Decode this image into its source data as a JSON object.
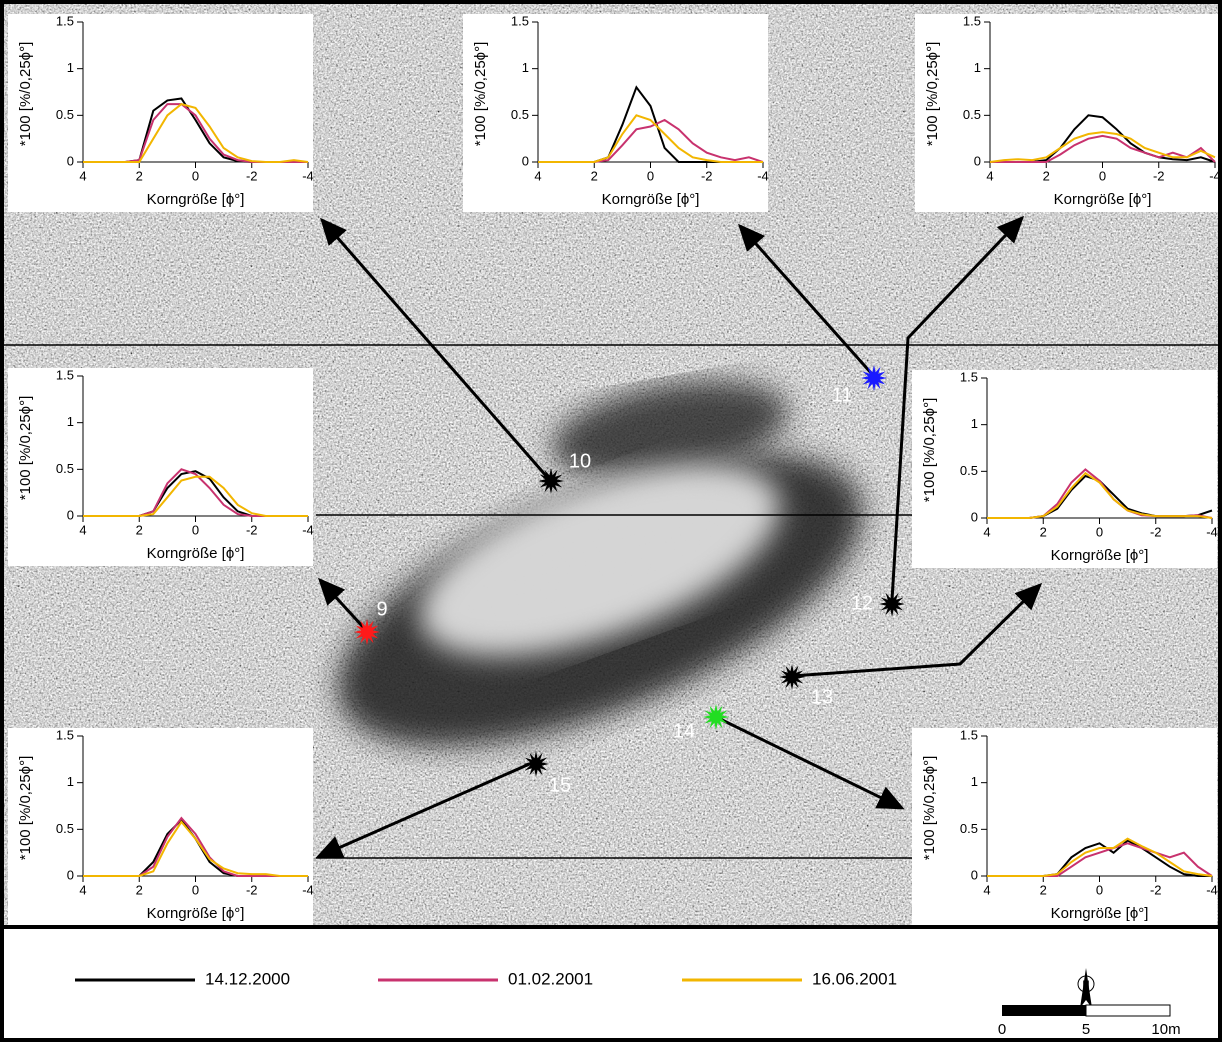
{
  "chart_data": [
    {
      "type": "line",
      "xlabel": "Korngröße [ϕ°]",
      "ylabel": "*100 [%/0,25ϕ°]",
      "x": [
        4,
        3.5,
        3,
        2.5,
        2,
        1.5,
        1,
        0.5,
        0,
        -0.5,
        -1,
        -1.5,
        -2,
        -2.5,
        -3,
        -3.5,
        -4
      ],
      "xlim": [
        4,
        -4
      ],
      "ylim": [
        0,
        1.5
      ],
      "xticks": [
        4,
        2,
        0,
        -2,
        -4
      ],
      "yticks": [
        0,
        0.5,
        1,
        1.5
      ],
      "series": [
        {
          "values": [
            0,
            0,
            0,
            0,
            0.02,
            0.55,
            0.66,
            0.68,
            0.45,
            0.2,
            0.05,
            0.01,
            0,
            0,
            0,
            0,
            0
          ]
        },
        {
          "values": [
            0,
            0,
            0,
            0,
            0.02,
            0.45,
            0.62,
            0.62,
            0.5,
            0.25,
            0.08,
            0.02,
            0,
            0,
            0,
            0,
            0
          ]
        },
        {
          "values": [
            0,
            0,
            0,
            0,
            0,
            0.25,
            0.5,
            0.62,
            0.58,
            0.38,
            0.15,
            0.05,
            0.01,
            0,
            0,
            0.02,
            0
          ]
        }
      ]
    },
    {
      "type": "line",
      "xlabel": "Korngröße [ϕ°]",
      "ylabel": "*100 [%/0,25ϕ°]",
      "x": [
        4,
        3.5,
        3,
        2.5,
        2,
        1.5,
        1,
        0.5,
        0,
        -0.5,
        -1,
        -1.5,
        -2,
        -2.5,
        -3,
        -3.5,
        -4
      ],
      "xlim": [
        4,
        -4
      ],
      "ylim": [
        0,
        1.5
      ],
      "xticks": [
        4,
        2,
        0,
        -2,
        -4
      ],
      "yticks": [
        0,
        0.5,
        1,
        1.5
      ],
      "series": [
        {
          "values": [
            0,
            0,
            0,
            0,
            0,
            0.05,
            0.4,
            0.8,
            0.6,
            0.15,
            0,
            0,
            0,
            0,
            0,
            0,
            0
          ]
        },
        {
          "values": [
            0,
            0,
            0,
            0,
            0,
            0.02,
            0.18,
            0.35,
            0.38,
            0.45,
            0.35,
            0.2,
            0.1,
            0.05,
            0.02,
            0.05,
            0
          ]
        },
        {
          "values": [
            0,
            0,
            0,
            0,
            0,
            0.05,
            0.3,
            0.5,
            0.45,
            0.3,
            0.15,
            0.05,
            0.02,
            0,
            0,
            0,
            0
          ]
        }
      ]
    },
    {
      "type": "line",
      "xlabel": "Korngröße [ϕ°]",
      "ylabel": "*100 [%/0,25ϕ°]",
      "x": [
        4,
        3.5,
        3,
        2.5,
        2,
        1.5,
        1,
        0.5,
        0,
        -0.5,
        -1,
        -1.5,
        -2,
        -2.5,
        -3,
        -3.5,
        -4
      ],
      "xlim": [
        4,
        -4
      ],
      "ylim": [
        0,
        1.5
      ],
      "xticks": [
        4,
        2,
        0,
        -2,
        -4
      ],
      "yticks": [
        0,
        0.5,
        1,
        1.5
      ],
      "series": [
        {
          "values": [
            0,
            0,
            0,
            0,
            0.02,
            0.15,
            0.35,
            0.5,
            0.48,
            0.35,
            0.2,
            0.1,
            0.05,
            0.03,
            0.02,
            0.05,
            0
          ]
        },
        {
          "values": [
            0,
            0,
            0,
            0,
            0,
            0.08,
            0.18,
            0.25,
            0.28,
            0.25,
            0.15,
            0.1,
            0.05,
            0.1,
            0.05,
            0.15,
            0
          ]
        },
        {
          "values": [
            0,
            0.02,
            0.03,
            0.02,
            0.05,
            0.15,
            0.25,
            0.3,
            0.32,
            0.3,
            0.25,
            0.15,
            0.1,
            0.05,
            0.05,
            0.12,
            0.05
          ]
        }
      ]
    },
    {
      "type": "line",
      "xlabel": "Korngröße [ϕ°]",
      "ylabel": "*100 [%/0,25ϕ°]",
      "x": [
        4,
        3.5,
        3,
        2.5,
        2,
        1.5,
        1,
        0.5,
        0,
        -0.5,
        -1,
        -1.5,
        -2,
        -2.5,
        -3,
        -3.5,
        -4
      ],
      "xlim": [
        4,
        -4
      ],
      "ylim": [
        0,
        1.5
      ],
      "xticks": [
        4,
        2,
        0,
        -2,
        -4
      ],
      "yticks": [
        0,
        0.5,
        1,
        1.5
      ],
      "series": [
        {
          "values": [
            0,
            0,
            0,
            0,
            0,
            0.05,
            0.3,
            0.45,
            0.48,
            0.4,
            0.2,
            0.05,
            0,
            0,
            0,
            0,
            0
          ]
        },
        {
          "values": [
            0,
            0,
            0,
            0,
            0,
            0.05,
            0.35,
            0.5,
            0.45,
            0.3,
            0.12,
            0.02,
            0,
            0,
            0,
            0,
            0
          ]
        },
        {
          "values": [
            0,
            0,
            0,
            0,
            0,
            0.02,
            0.2,
            0.38,
            0.42,
            0.42,
            0.3,
            0.12,
            0.03,
            0,
            0,
            0,
            0
          ]
        }
      ]
    },
    {
      "type": "line",
      "xlabel": "Korngröße [ϕ°]",
      "ylabel": "*100 [%/0,25ϕ°]",
      "x": [
        4,
        3.5,
        3,
        2.5,
        2,
        1.5,
        1,
        0.5,
        0,
        -0.5,
        -1,
        -1.5,
        -2,
        -2.5,
        -3,
        -3.5,
        -4
      ],
      "xlim": [
        4,
        -4
      ],
      "ylim": [
        0,
        1.5
      ],
      "xticks": [
        4,
        2,
        0,
        -2,
        -4
      ],
      "yticks": [
        0,
        0.5,
        1,
        1.5
      ],
      "series": [
        {
          "values": [
            0,
            0,
            0,
            0,
            0.02,
            0.1,
            0.3,
            0.45,
            0.4,
            0.25,
            0.1,
            0.05,
            0.02,
            0.02,
            0.02,
            0.03,
            0.08
          ]
        },
        {
          "values": [
            0,
            0,
            0,
            0,
            0.02,
            0.15,
            0.38,
            0.52,
            0.4,
            0.2,
            0.08,
            0.03,
            0.02,
            0.02,
            0.02,
            0.03,
            0
          ]
        },
        {
          "values": [
            0,
            0,
            0,
            0,
            0.02,
            0.12,
            0.32,
            0.48,
            0.38,
            0.2,
            0.08,
            0.04,
            0.02,
            0.02,
            0.02,
            0.02,
            0
          ]
        }
      ]
    },
    {
      "type": "line",
      "xlabel": "Korngröße [ϕ°]",
      "ylabel": "*100 [%/0,25ϕ°]",
      "x": [
        4,
        3.5,
        3,
        2.5,
        2,
        1.5,
        1,
        0.5,
        0,
        -0.5,
        -1,
        -1.5,
        -2,
        -2.5,
        -3,
        -3.5,
        -4
      ],
      "xlim": [
        4,
        -4
      ],
      "ylim": [
        0,
        1.5
      ],
      "xticks": [
        4,
        2,
        0,
        -2,
        -4
      ],
      "yticks": [
        0,
        0.5,
        1,
        1.5
      ],
      "series": [
        {
          "values": [
            0,
            0,
            0,
            0,
            0,
            0.15,
            0.45,
            0.6,
            0.4,
            0.15,
            0.03,
            0,
            0,
            0,
            0,
            0,
            0
          ]
        },
        {
          "values": [
            0,
            0,
            0,
            0,
            0,
            0.1,
            0.42,
            0.62,
            0.45,
            0.2,
            0.05,
            0,
            0,
            0,
            0,
            0,
            0
          ]
        },
        {
          "values": [
            0,
            0,
            0,
            0,
            0,
            0.05,
            0.35,
            0.58,
            0.4,
            0.18,
            0.08,
            0.03,
            0.02,
            0.02,
            0,
            0,
            0
          ]
        }
      ]
    },
    {
      "type": "line",
      "xlabel": "Korngröße [ϕ°]",
      "ylabel": "*100 [%/0,25ϕ°]",
      "x": [
        4,
        3.5,
        3,
        2.5,
        2,
        1.5,
        1,
        0.5,
        0,
        -0.5,
        -1,
        -1.5,
        -2,
        -2.5,
        -3,
        -3.5,
        -4
      ],
      "xlim": [
        4,
        -4
      ],
      "ylim": [
        0,
        1.5
      ],
      "xticks": [
        4,
        2,
        0,
        -2,
        -4
      ],
      "yticks": [
        0,
        0.5,
        1,
        1.5
      ],
      "series": [
        {
          "values": [
            0,
            0,
            0,
            0,
            0,
            0.02,
            0.2,
            0.3,
            0.35,
            0.25,
            0.38,
            0.3,
            0.2,
            0.1,
            0.02,
            0,
            0
          ]
        },
        {
          "values": [
            0,
            0,
            0,
            0,
            0,
            0,
            0.1,
            0.2,
            0.25,
            0.3,
            0.35,
            0.3,
            0.25,
            0.2,
            0.25,
            0.1,
            0
          ]
        },
        {
          "values": [
            0,
            0,
            0,
            0,
            0,
            0.02,
            0.15,
            0.25,
            0.3,
            0.3,
            0.4,
            0.32,
            0.25,
            0.15,
            0.05,
            0.02,
            0
          ]
        }
      ]
    }
  ],
  "legend": [
    {
      "name": "14.12.2000",
      "color": "#000000"
    },
    {
      "name": "01.02.2001",
      "color": "#c8326e"
    },
    {
      "name": "16.06.2001",
      "color": "#f2b600"
    }
  ],
  "stations": [
    {
      "label": "9",
      "color": "#ff1a1a"
    },
    {
      "label": "10",
      "color": "#000000"
    },
    {
      "label": "11",
      "color": "#1a1aff"
    },
    {
      "label": "12",
      "color": "#000000"
    },
    {
      "label": "13",
      "color": "#000000"
    },
    {
      "label": "14",
      "color": "#22dd22"
    },
    {
      "label": "15",
      "color": "#000000"
    }
  ],
  "scale_bar": {
    "labels": [
      "0",
      "5",
      "10m"
    ]
  },
  "north": "N"
}
